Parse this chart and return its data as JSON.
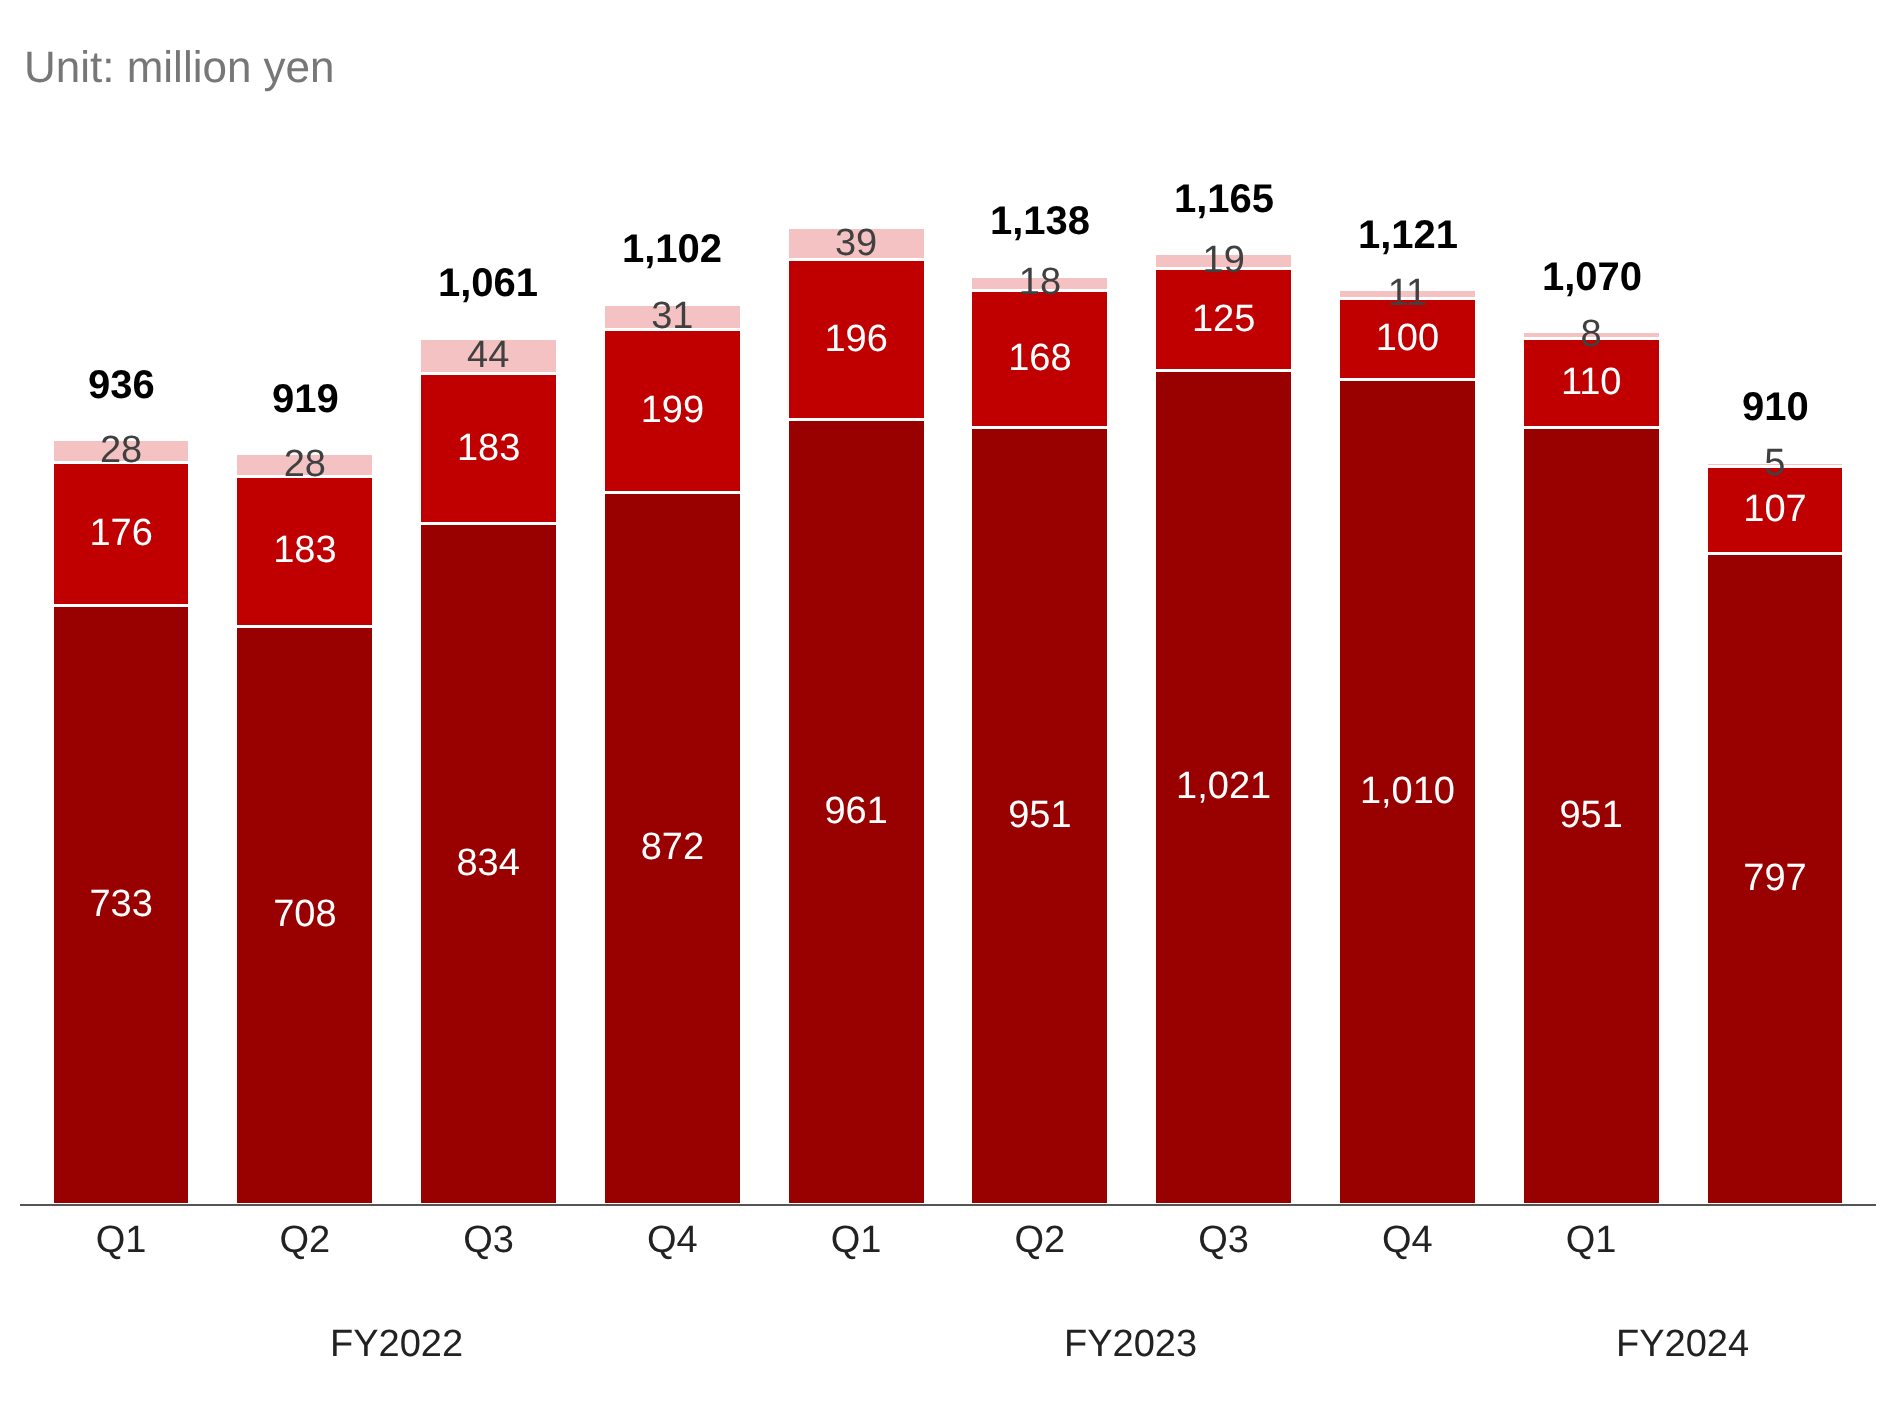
{
  "chart_data": {
    "type": "bar",
    "stacked": true,
    "subtitle": "Unit: million yen",
    "categories": [
      "Q1",
      "Q2",
      "Q3",
      "Q4",
      "Q1",
      "Q2",
      "Q3",
      "Q4",
      "Q1",
      null
    ],
    "series": [
      {
        "color": "#990000",
        "values": [
          733,
          708,
          834,
          872,
          961,
          951,
          1021,
          1010,
          951,
          797
        ],
        "value_labels": [
          "733",
          "708",
          "834",
          "872",
          "961",
          "951",
          "1,021",
          "1,010",
          "951",
          "797"
        ]
      },
      {
        "color": "#c00000",
        "values": [
          176,
          183,
          183,
          199,
          196,
          168,
          125,
          100,
          110,
          107
        ],
        "value_labels": [
          "176",
          "183",
          "183",
          "199",
          "196",
          "168",
          "125",
          "100",
          "110",
          "107"
        ]
      },
      {
        "color": "#f4c2c2",
        "values": [
          28,
          28,
          44,
          31,
          39,
          18,
          19,
          11,
          8,
          5
        ],
        "value_labels": [
          "28",
          "28",
          "44",
          "31",
          "39",
          "18",
          "19",
          "11",
          "8",
          "5"
        ]
      }
    ],
    "totals": [
      "936",
      "919",
      "1,061",
      "1,102",
      null,
      "1,138",
      "1,165",
      "1,121",
      "1,070",
      "910"
    ],
    "annotations": [
      "FY2022",
      "FY2023",
      "FY2024"
    ]
  }
}
